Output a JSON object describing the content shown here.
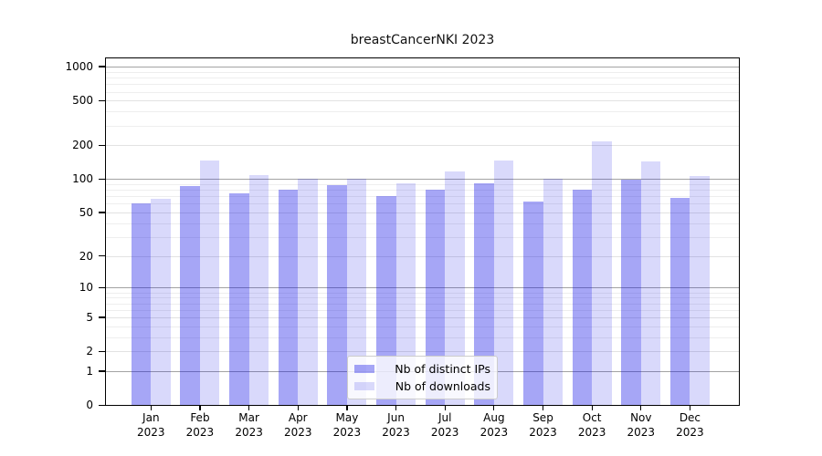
{
  "title": "breastCancerNKI 2023",
  "chart_data": {
    "type": "bar",
    "title": "breastCancerNKI 2023",
    "scale": "log1p",
    "categories": [
      "Jan",
      "Feb",
      "Mar",
      "Apr",
      "May",
      "Jun",
      "Jul",
      "Aug",
      "Sep",
      "Oct",
      "Nov",
      "Dec"
    ],
    "year": "2023",
    "series": [
      {
        "name": "Nb of distinct IPs",
        "color": "rgba(0,0,230,0.35)",
        "values": [
          60,
          87,
          75,
          80,
          88,
          70,
          81,
          92,
          63,
          80,
          98,
          68
        ]
      },
      {
        "name": "Nb of downloads",
        "color": "rgba(0,0,230,0.15)",
        "values": [
          67,
          147,
          108,
          100,
          100,
          92,
          116,
          147,
          101,
          218,
          145,
          107
        ]
      }
    ],
    "y_ticks": [
      0,
      1,
      2,
      5,
      10,
      20,
      50,
      100,
      200,
      500,
      1000
    ],
    "y_decade_ticks": [
      1,
      10,
      100,
      1000
    ],
    "y_minor_ticks": [
      3,
      4,
      6,
      7,
      8,
      9,
      30,
      40,
      60,
      70,
      80,
      90,
      300,
      400,
      600,
      700,
      800,
      900
    ],
    "ylim": [
      0,
      1220
    ],
    "xlabel": "",
    "ylabel": "",
    "grid": true,
    "legend_position": "lower center"
  }
}
